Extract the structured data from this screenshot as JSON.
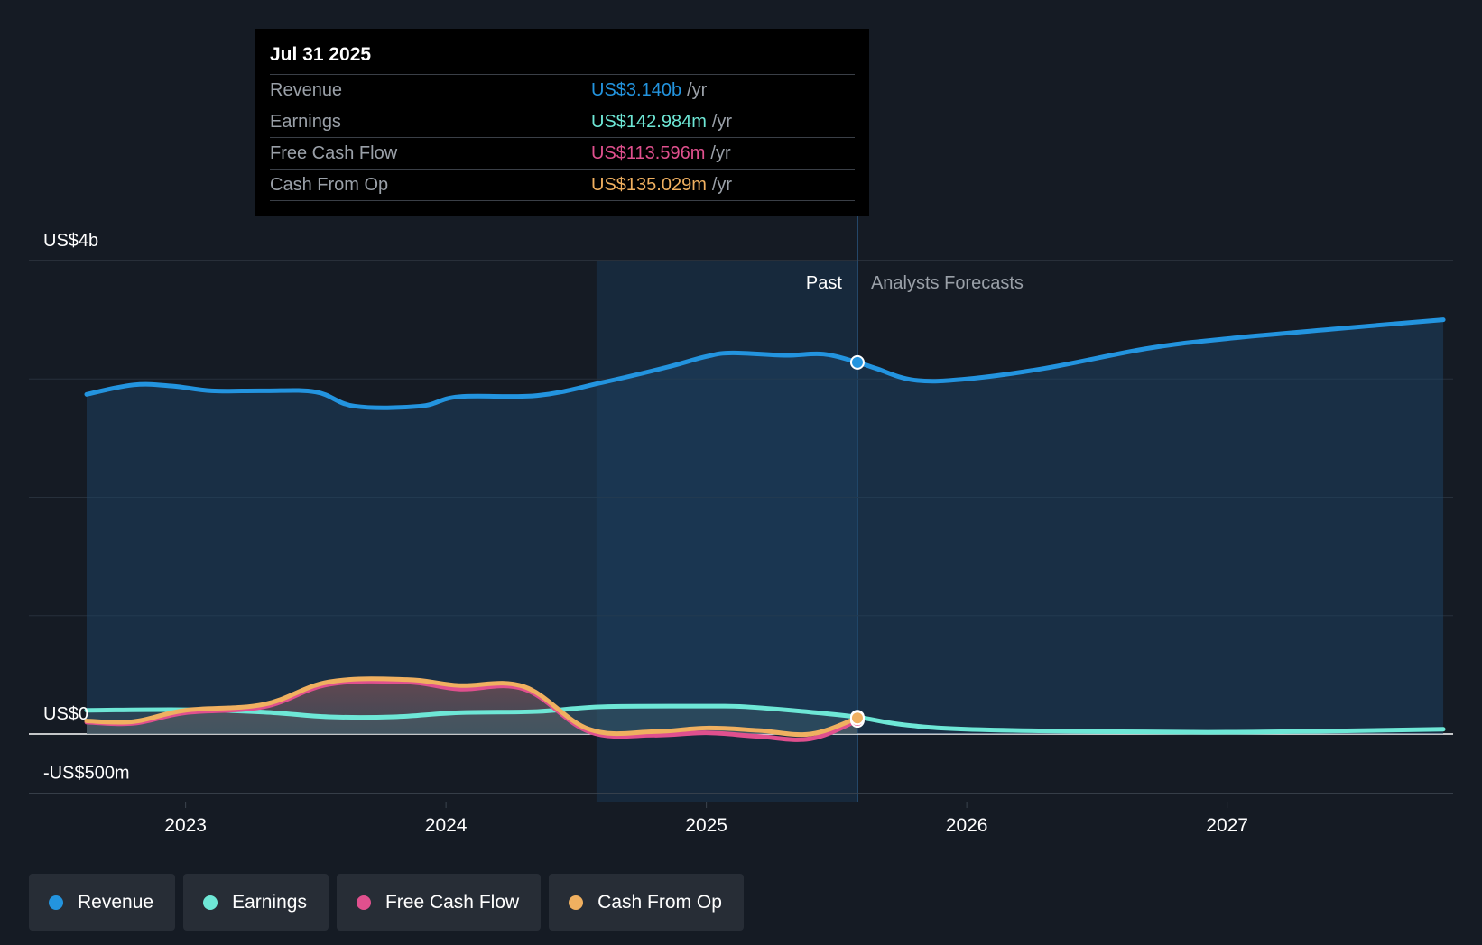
{
  "tooltip": {
    "date": "Jul 31 2025",
    "rows": [
      {
        "label": "Revenue",
        "value": "US$3.140b",
        "unit": "/yr",
        "color": "#2394df"
      },
      {
        "label": "Earnings",
        "value": "US$142.984m",
        "unit": "/yr",
        "color": "#6ee7d6"
      },
      {
        "label": "Free Cash Flow",
        "value": "US$113.596m",
        "unit": "/yr",
        "color": "#e0508e"
      },
      {
        "label": "Cash From Op",
        "value": "US$135.029m",
        "unit": "/yr",
        "color": "#f0b060"
      }
    ]
  },
  "regions": {
    "past_label": "Past",
    "forecast_label": "Analysts Forecasts"
  },
  "legend": [
    {
      "label": "Revenue",
      "color": "#2394df"
    },
    {
      "label": "Earnings",
      "color": "#6ee7d6"
    },
    {
      "label": "Free Cash Flow",
      "color": "#e0508e"
    },
    {
      "label": "Cash From Op",
      "color": "#f0b060"
    }
  ],
  "chart_data": {
    "type": "line",
    "title": "",
    "x_unit": "year",
    "xlim": [
      2022.6,
      2027.83
    ],
    "ylim": [
      -500,
      4000
    ],
    "y_unit": "US$m",
    "y_tick_labels": [
      {
        "value": 4000,
        "label": "US$4b"
      },
      {
        "value": 0,
        "label": "US$0"
      },
      {
        "value": -500,
        "label": "-US$500m"
      }
    ],
    "y_gridlines": [
      4000,
      3000,
      2000,
      1000,
      0,
      -500
    ],
    "x_ticks": [
      {
        "value": 2023,
        "label": "2023"
      },
      {
        "value": 2024,
        "label": "2024"
      },
      {
        "value": 2025,
        "label": "2025"
      },
      {
        "value": 2026,
        "label": "2026"
      },
      {
        "value": 2027,
        "label": "2027"
      }
    ],
    "past_end": 2025.58,
    "shaded_past_start": 2024.58,
    "series": [
      {
        "name": "Revenue",
        "color": "#2394df",
        "x": [
          2022.62,
          2022.8,
          2022.95,
          2023.1,
          2023.3,
          2023.5,
          2023.65,
          2023.9,
          2024.05,
          2024.35,
          2024.6,
          2024.85,
          2025.0,
          2025.1,
          2025.3,
          2025.45,
          2025.58,
          2025.65,
          2025.8,
          2026.0,
          2026.3,
          2026.7,
          2027.0,
          2027.4,
          2027.83
        ],
        "y": [
          2870,
          2950,
          2940,
          2900,
          2900,
          2890,
          2770,
          2770,
          2850,
          2860,
          2970,
          3100,
          3190,
          3220,
          3200,
          3210,
          3140,
          3090,
          2990,
          3000,
          3090,
          3260,
          3340,
          3420,
          3500
        ]
      },
      {
        "name": "Earnings",
        "color": "#6ee7d6",
        "x": [
          2022.62,
          2023.0,
          2023.3,
          2023.55,
          2023.8,
          2024.05,
          2024.35,
          2024.6,
          2025.0,
          2025.15,
          2025.4,
          2025.58,
          2025.75,
          2026.0,
          2026.5,
          2027.0,
          2027.4,
          2027.83
        ],
        "y": [
          200,
          205,
          185,
          145,
          145,
          180,
          190,
          230,
          235,
          230,
          185,
          143,
          80,
          40,
          20,
          15,
          25,
          40
        ]
      },
      {
        "name": "Free Cash Flow",
        "color": "#e0508e",
        "x": [
          2022.62,
          2022.8,
          2023.0,
          2023.3,
          2023.55,
          2023.85,
          2024.05,
          2024.3,
          2024.55,
          2024.8,
          2025.0,
          2025.2,
          2025.4,
          2025.58
        ],
        "y": [
          100,
          90,
          180,
          230,
          420,
          440,
          380,
          380,
          20,
          -10,
          10,
          -20,
          -40,
          114
        ]
      },
      {
        "name": "Cash From Op",
        "color": "#f0b060",
        "x": [
          2022.62,
          2022.8,
          2023.0,
          2023.3,
          2023.55,
          2023.85,
          2024.05,
          2024.3,
          2024.55,
          2024.8,
          2025.0,
          2025.2,
          2025.4,
          2025.58
        ],
        "y": [
          110,
          105,
          200,
          250,
          440,
          460,
          410,
          400,
          40,
          20,
          50,
          30,
          0,
          135
        ]
      }
    ]
  }
}
